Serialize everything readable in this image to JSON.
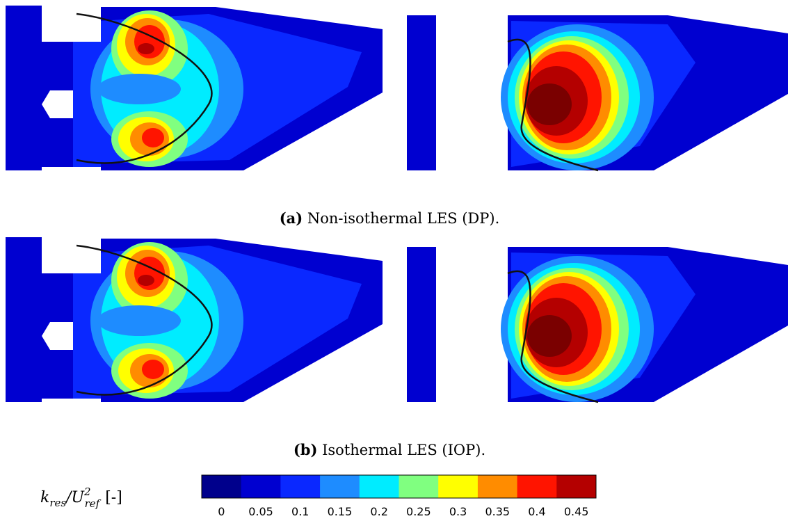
{
  "figure": {
    "captions": [
      {
        "tag": "(a)",
        "text": "Non-isothermal LES (DP)."
      },
      {
        "tag": "(b)",
        "text": "Isothermal LES (IOP)."
      }
    ],
    "colorbar": {
      "label": {
        "k": "k",
        "k_sub": "res",
        "slash": "/U",
        "u_sup": "2",
        "u_sub": "ref",
        "unit": "[-]"
      },
      "ticks": [
        0,
        0.05,
        0.1,
        0.15,
        0.2,
        0.25,
        0.3,
        0.35,
        0.4,
        0.45
      ],
      "colors": [
        "#00008c",
        "#0000d0",
        "#0a28ff",
        "#1e8cff",
        "#00ecff",
        "#80ff80",
        "#ffff00",
        "#ff8c00",
        "#ff1400",
        "#b40000"
      ]
    }
  }
}
